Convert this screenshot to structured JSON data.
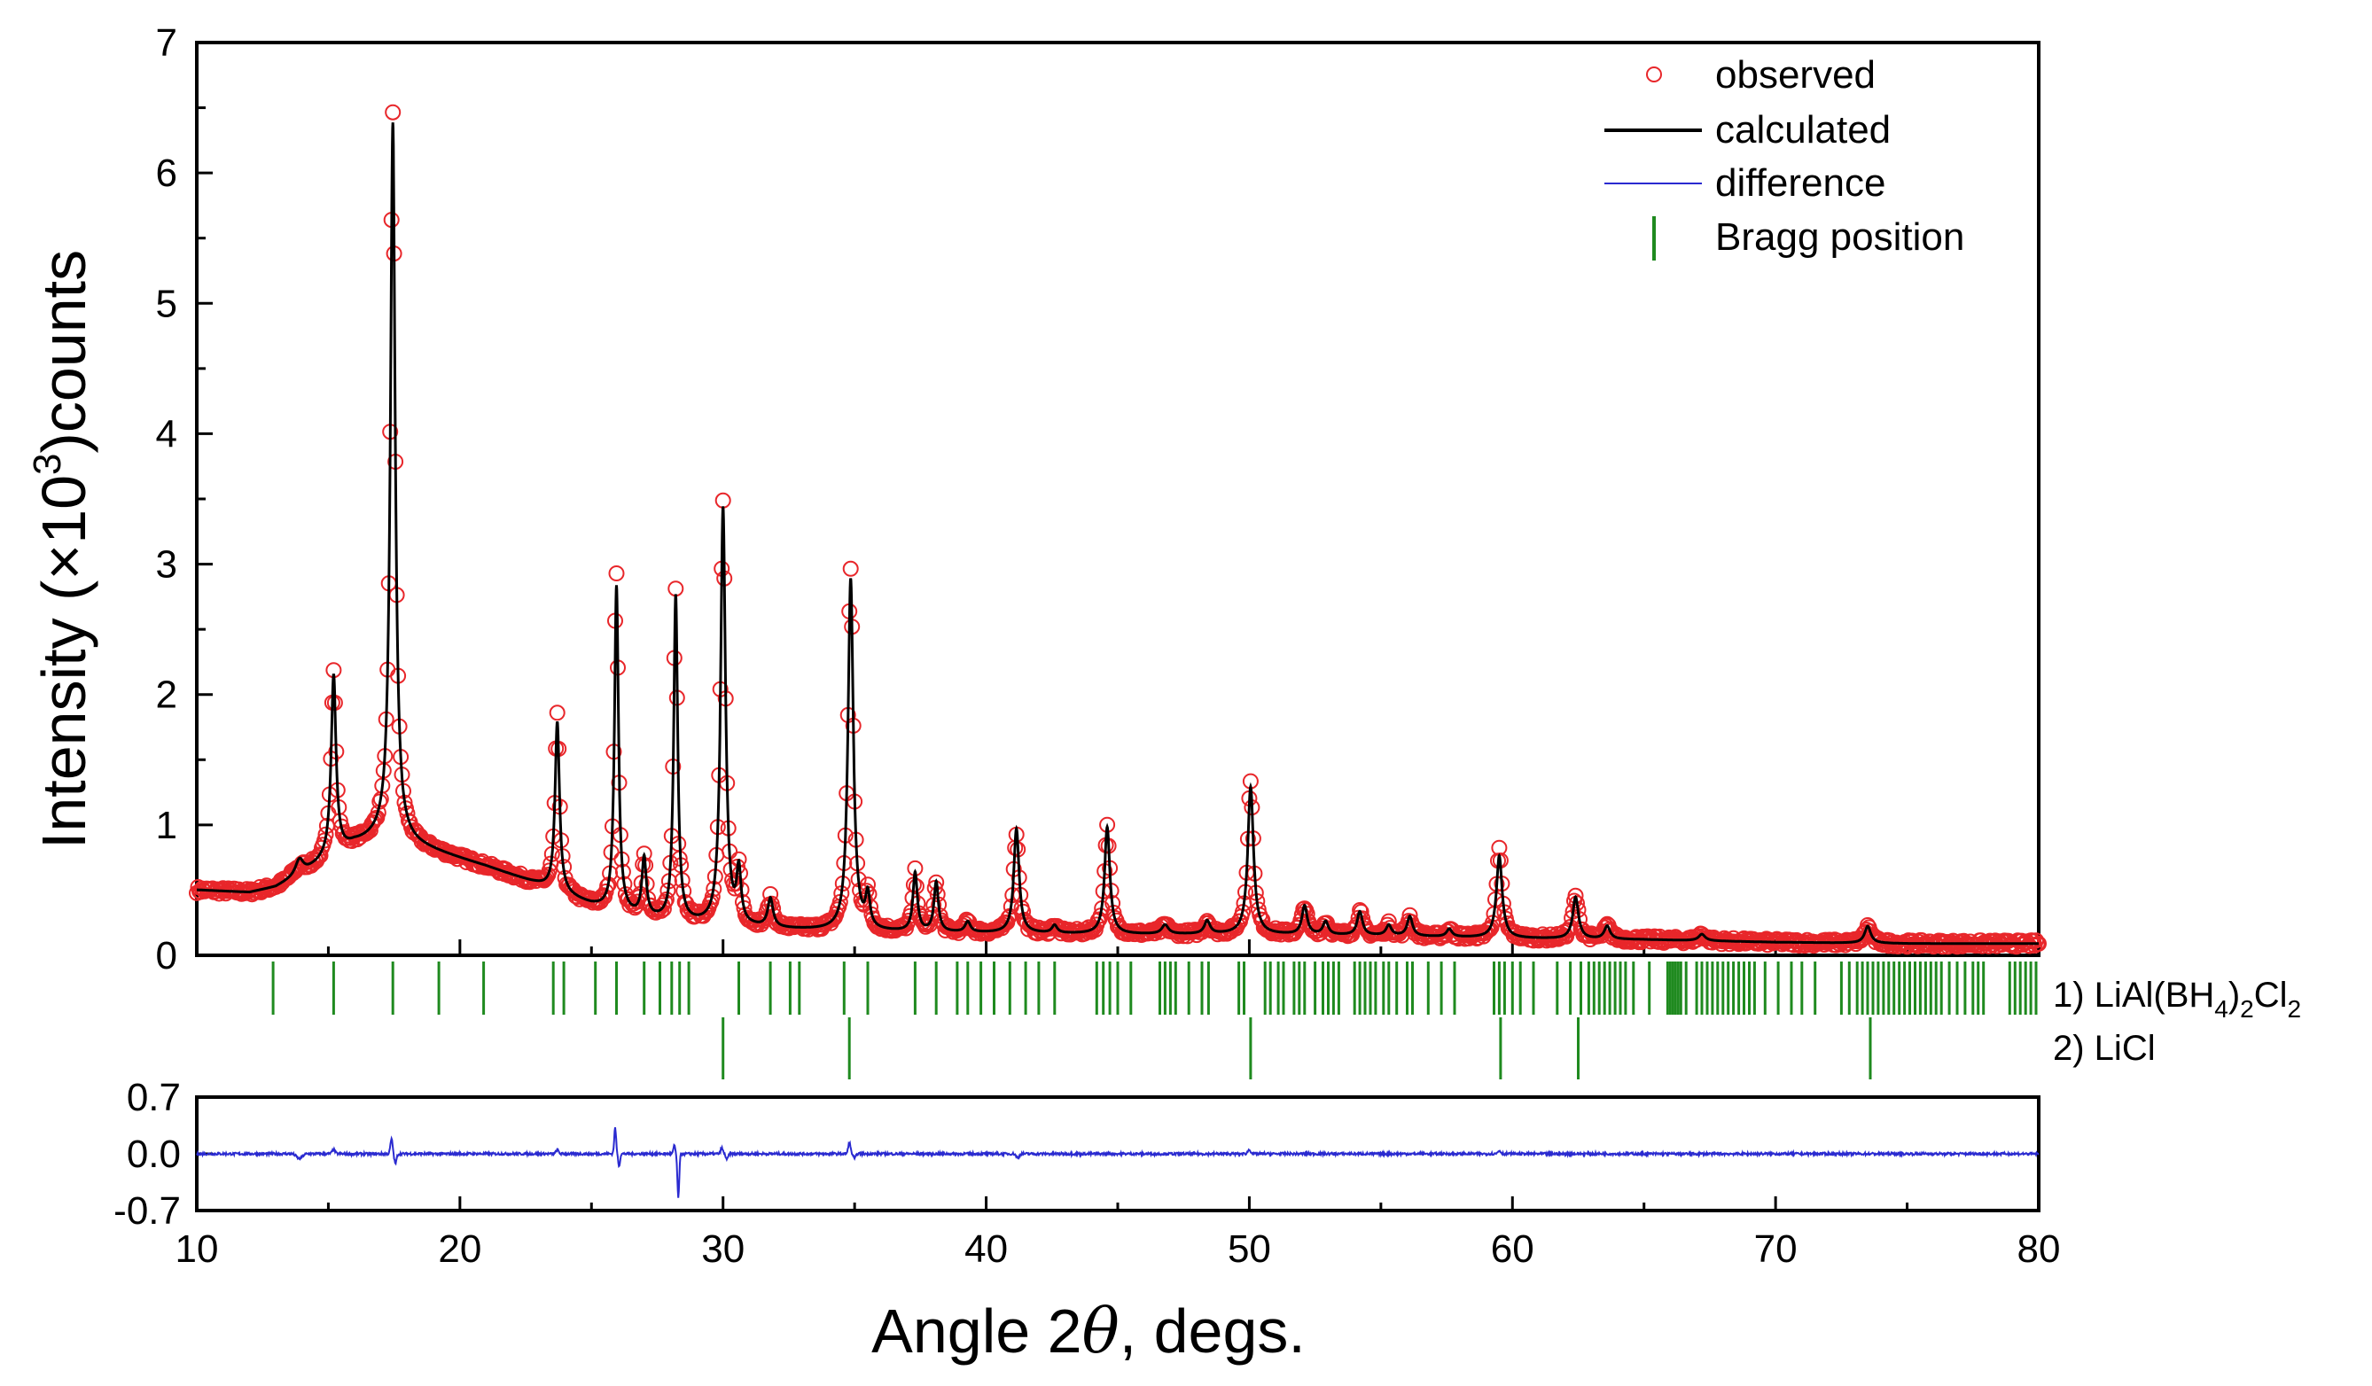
{
  "chart_data": {
    "type": "line",
    "title": "",
    "xlabel_prefix": "Angle 2",
    "xlabel_symbol": "θ",
    "xlabel_suffix": ", degs.",
    "ylabel_prefix": "Intensity (×10",
    "ylabel_exp": "3",
    "ylabel_suffix": ")counts",
    "xlim": [
      10,
      80
    ],
    "ylim": [
      0,
      7
    ],
    "diff_ylim": [
      -0.7,
      0.7
    ],
    "x_ticks": [
      "10",
      "20",
      "30",
      "40",
      "50",
      "60",
      "70",
      "80"
    ],
    "y_ticks": [
      "0",
      "1",
      "2",
      "3",
      "4",
      "5",
      "6",
      "7"
    ],
    "diff_y_ticks": [
      "0.7",
      "0.0",
      "-0.7"
    ],
    "legend": {
      "placement": "top-right",
      "observed": "observed",
      "calculated": "calculated",
      "difference": "difference",
      "bragg": "Bragg position"
    },
    "colors": {
      "observed": "#e8262a",
      "calculated": "#000000",
      "difference": "#2a2ad0",
      "bragg": "#1f8a1f"
    },
    "background": {
      "x": [
        10,
        12,
        13,
        14,
        15,
        16,
        17,
        18,
        19,
        20,
        21,
        22,
        23,
        24,
        25,
        26,
        27,
        28,
        30,
        32,
        35,
        40,
        45,
        50,
        55,
        60,
        65,
        70,
        75,
        80
      ],
      "y": [
        0.5,
        0.48,
        0.52,
        0.62,
        0.74,
        0.85,
        0.9,
        0.86,
        0.8,
        0.74,
        0.68,
        0.61,
        0.54,
        0.46,
        0.38,
        0.32,
        0.28,
        0.25,
        0.22,
        0.2,
        0.18,
        0.17,
        0.16,
        0.16,
        0.15,
        0.13,
        0.12,
        0.1,
        0.09,
        0.09
      ]
    },
    "peaks": [
      {
        "x": 13.9,
        "h": 0.12,
        "w": 0.18
      },
      {
        "x": 15.2,
        "h": 1.38,
        "w": 0.11
      },
      {
        "x": 17.45,
        "h": 5.5,
        "w": 0.11
      },
      {
        "x": 23.7,
        "h": 1.3,
        "w": 0.1
      },
      {
        "x": 25.95,
        "h": 2.5,
        "w": 0.09
      },
      {
        "x": 27.0,
        "h": 0.45,
        "w": 0.1
      },
      {
        "x": 28.2,
        "h": 2.5,
        "w": 0.09
      },
      {
        "x": 30.0,
        "h": 3.2,
        "w": 0.11
      },
      {
        "x": 30.6,
        "h": 0.4,
        "w": 0.1
      },
      {
        "x": 31.8,
        "h": 0.22,
        "w": 0.12
      },
      {
        "x": 34.85,
        "h": 2.7,
        "w": 0.12
      },
      {
        "x": 35.5,
        "h": 0.25,
        "w": 0.1
      },
      {
        "x": 37.3,
        "h": 0.45,
        "w": 0.1
      },
      {
        "x": 38.1,
        "h": 0.38,
        "w": 0.1
      },
      {
        "x": 39.3,
        "h": 0.08,
        "w": 0.12
      },
      {
        "x": 41.15,
        "h": 0.8,
        "w": 0.12
      },
      {
        "x": 42.6,
        "h": 0.06,
        "w": 0.12
      },
      {
        "x": 44.6,
        "h": 0.82,
        "w": 0.12
      },
      {
        "x": 46.8,
        "h": 0.07,
        "w": 0.15
      },
      {
        "x": 48.4,
        "h": 0.1,
        "w": 0.13
      },
      {
        "x": 50.05,
        "h": 1.13,
        "w": 0.13
      },
      {
        "x": 52.1,
        "h": 0.22,
        "w": 0.12
      },
      {
        "x": 52.9,
        "h": 0.1,
        "w": 0.12
      },
      {
        "x": 54.2,
        "h": 0.18,
        "w": 0.12
      },
      {
        "x": 55.3,
        "h": 0.08,
        "w": 0.12
      },
      {
        "x": 56.1,
        "h": 0.15,
        "w": 0.12
      },
      {
        "x": 57.6,
        "h": 0.06,
        "w": 0.12
      },
      {
        "x": 59.5,
        "h": 0.63,
        "w": 0.13
      },
      {
        "x": 62.4,
        "h": 0.32,
        "w": 0.13
      },
      {
        "x": 63.6,
        "h": 0.1,
        "w": 0.13
      },
      {
        "x": 67.2,
        "h": 0.05,
        "w": 0.15
      },
      {
        "x": 73.5,
        "h": 0.13,
        "w": 0.14
      }
    ],
    "phases": [
      {
        "label_prefix": "1) LiAl(BH",
        "sub1": "4",
        "label_mid": ")",
        "sub2": "2",
        "label_mid2": "Cl",
        "sub3": "2",
        "positions": [
          12.9,
          15.2,
          17.45,
          19.2,
          20.9,
          23.55,
          23.95,
          25.15,
          25.95,
          27.0,
          27.6,
          28.05,
          28.35,
          28.7,
          30.6,
          31.8,
          32.55,
          32.9,
          34.6,
          35.5,
          37.3,
          38.1,
          38.9,
          39.3,
          39.8,
          40.3,
          40.9,
          41.5,
          42.0,
          42.6,
          44.2,
          44.45,
          44.7,
          45.0,
          45.5,
          46.6,
          46.8,
          47.0,
          47.2,
          47.7,
          48.2,
          48.45,
          49.6,
          49.8,
          50.6,
          50.8,
          51.1,
          51.3,
          51.7,
          51.9,
          52.1,
          52.5,
          52.8,
          53.0,
          53.2,
          53.4,
          54.0,
          54.2,
          54.4,
          54.6,
          54.8,
          55.1,
          55.3,
          55.6,
          56.0,
          56.2,
          56.8,
          57.3,
          57.8,
          59.3,
          59.5,
          59.7,
          60.0,
          60.3,
          60.8,
          61.7,
          62.2,
          62.6,
          62.9,
          63.1,
          63.3,
          63.5,
          63.7,
          63.9,
          64.1,
          64.3,
          64.6,
          65.2,
          65.9,
          66.0,
          66.1,
          66.2,
          66.3,
          66.4,
          66.6,
          67.0,
          67.2,
          67.4,
          67.6,
          67.8,
          68.0,
          68.2,
          68.4,
          68.6,
          68.8,
          69.0,
          69.2,
          69.6,
          70.1,
          70.6,
          71.0,
          71.5,
          72.5,
          72.8,
          73.1,
          73.3,
          73.5,
          73.7,
          73.9,
          74.1,
          74.3,
          74.5,
          74.7,
          74.9,
          75.1,
          75.3,
          75.5,
          75.7,
          75.9,
          76.1,
          76.3,
          76.6,
          76.9,
          77.2,
          77.5,
          77.7,
          77.9,
          78.9,
          79.1,
          79.3,
          79.5,
          79.7,
          79.9
        ]
      },
      {
        "label_prefix": "2) LiCl",
        "sub1": "",
        "label_mid": "",
        "sub2": "",
        "label_mid2": "",
        "sub3": "",
        "positions": [
          30.0,
          34.8,
          50.05,
          59.55,
          62.5,
          73.6
        ]
      }
    ],
    "difference_features": [
      {
        "x": 13.9,
        "a": -0.06,
        "w": 0.15
      },
      {
        "x": 15.2,
        "a": 0.05,
        "w": 0.08
      },
      {
        "x": 17.4,
        "a": 0.18,
        "w": 0.06
      },
      {
        "x": 17.55,
        "a": -0.12,
        "w": 0.06
      },
      {
        "x": 23.7,
        "a": 0.05,
        "w": 0.07
      },
      {
        "x": 25.9,
        "a": 0.32,
        "w": 0.05
      },
      {
        "x": 26.05,
        "a": -0.15,
        "w": 0.05
      },
      {
        "x": 28.15,
        "a": 0.1,
        "w": 0.05
      },
      {
        "x": 28.3,
        "a": -0.55,
        "w": 0.05
      },
      {
        "x": 29.95,
        "a": 0.07,
        "w": 0.06
      },
      {
        "x": 30.15,
        "a": -0.07,
        "w": 0.06
      },
      {
        "x": 34.8,
        "a": 0.14,
        "w": 0.06
      },
      {
        "x": 35.0,
        "a": -0.06,
        "w": 0.06
      },
      {
        "x": 41.2,
        "a": -0.05,
        "w": 0.08
      },
      {
        "x": 50.0,
        "a": 0.05,
        "w": 0.08
      },
      {
        "x": 59.5,
        "a": 0.04,
        "w": 0.08
      }
    ]
  }
}
